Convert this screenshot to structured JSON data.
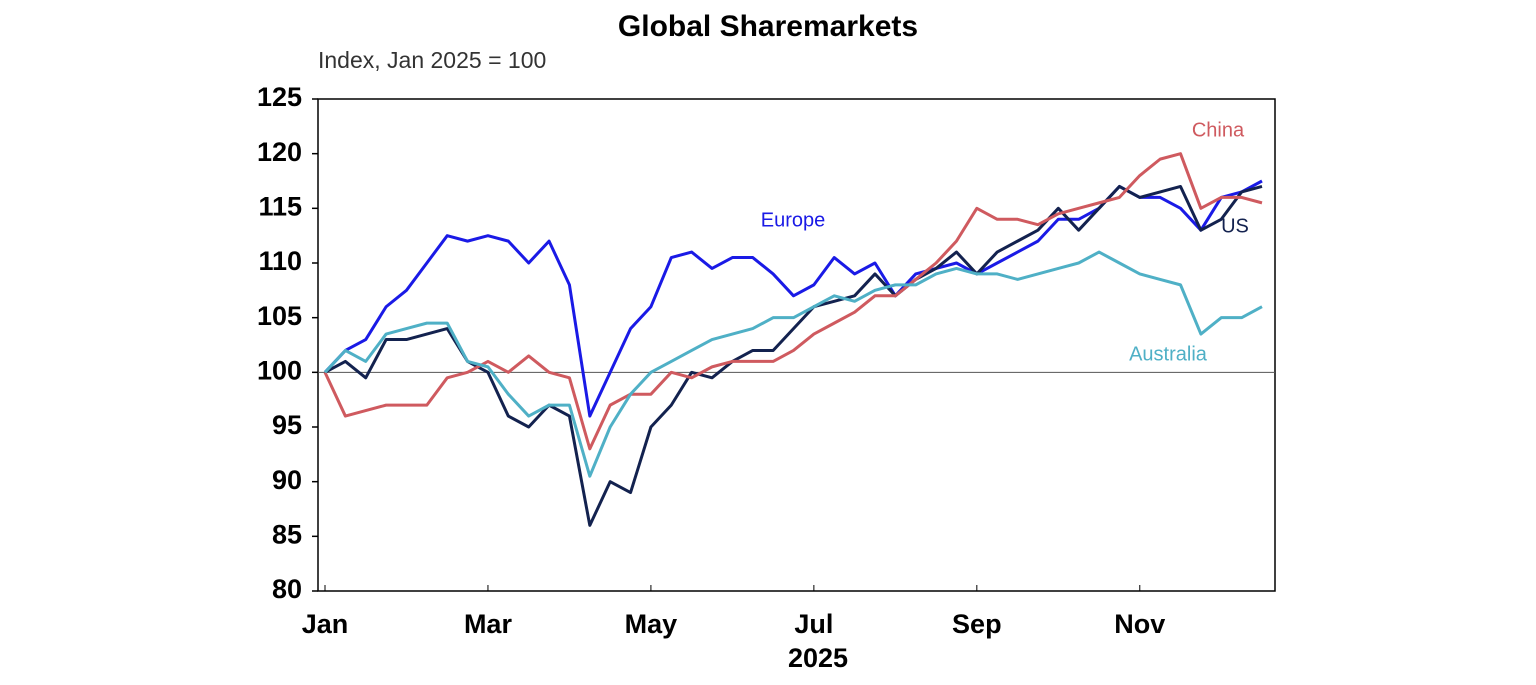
{
  "chart_data": {
    "type": "line",
    "title": "Global Sharemarkets",
    "subtitle": "Index, Jan 2025 = 100",
    "x_label": "2025",
    "categories": [
      "Jan",
      null,
      null,
      null,
      null,
      null,
      null,
      null,
      "Mar",
      null,
      null,
      null,
      null,
      null,
      null,
      null,
      "May",
      null,
      null,
      null,
      null,
      null,
      null,
      null,
      "Jul",
      null,
      null,
      null,
      null,
      null,
      null,
      null,
      "Sep",
      null,
      null,
      null,
      null,
      null,
      null,
      null,
      "Nov",
      null,
      null,
      null,
      null,
      null,
      null
    ],
    "series": [
      {
        "name": "Europe",
        "color": "#1a1ae6",
        "values": [
          100,
          102,
          103,
          106,
          107.5,
          110,
          112.5,
          112,
          112.5,
          112,
          110,
          112,
          108,
          96,
          100,
          104,
          106,
          110.5,
          111,
          109.5,
          110.5,
          110.5,
          109,
          107,
          108,
          110.5,
          109,
          110,
          107,
          109,
          109.5,
          110,
          109,
          110,
          111,
          112,
          114,
          114,
          115,
          117,
          116,
          116,
          115,
          113,
          116,
          116.5,
          117.5
        ]
      },
      {
        "name": "US",
        "color": "#13224f",
        "values": [
          100,
          101,
          99.5,
          103,
          103,
          103.5,
          104,
          101,
          100,
          96,
          95,
          97,
          96,
          86,
          90,
          89,
          95,
          97,
          100,
          99.5,
          101,
          102,
          102,
          104,
          106,
          106.5,
          107,
          109,
          107,
          108.5,
          109.5,
          111,
          109,
          111,
          112,
          113,
          115,
          113,
          115,
          117,
          116,
          116.5,
          117,
          113,
          114,
          116.5,
          117
        ]
      },
      {
        "name": "China",
        "color": "#cf5a5f",
        "values": [
          100,
          96,
          96.5,
          97,
          97,
          97,
          99.5,
          100,
          101,
          100,
          101.5,
          100,
          99.5,
          93,
          97,
          98,
          98,
          100,
          99.5,
          100.5,
          101,
          101,
          101,
          102,
          103.5,
          104.5,
          105.5,
          107,
          107,
          108.5,
          110,
          112,
          115,
          114,
          114,
          113.5,
          114.5,
          115,
          115.5,
          116,
          118,
          119.5,
          120,
          115,
          116,
          116,
          115.5
        ]
      },
      {
        "name": "Australia",
        "color": "#4fb0c6",
        "values": [
          100,
          102,
          101,
          103.5,
          104,
          104.5,
          104.5,
          101,
          100.5,
          98,
          96,
          97,
          97,
          90.5,
          95,
          98,
          100,
          101,
          102,
          103,
          103.5,
          104,
          105,
          105,
          106,
          107,
          106.5,
          107.5,
          108,
          108,
          109,
          109.5,
          109,
          109,
          108.5,
          109,
          109.5,
          110,
          111,
          110,
          109,
          108.5,
          108,
          103.5,
          105,
          105,
          106
        ]
      }
    ],
    "ylim": [
      80,
      125
    ],
    "yticks": [
      80,
      85,
      90,
      95,
      100,
      105,
      110,
      115,
      120,
      125
    ],
    "reference_line": 100,
    "grid": false
  }
}
